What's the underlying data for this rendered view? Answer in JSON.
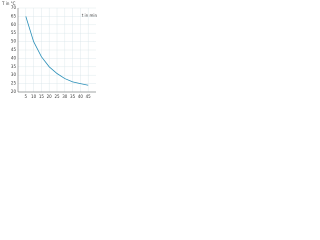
{
  "chart_data": {
    "type": "line",
    "y_label": "T in °C",
    "x_label": "t in min",
    "x": [
      5,
      10,
      15,
      20,
      25,
      30,
      35,
      40,
      45
    ],
    "series": [
      {
        "name": "T",
        "color": "#2a8fb8",
        "values": [
          65,
          50,
          41,
          35,
          31,
          28,
          26,
          25,
          24
        ]
      }
    ],
    "xlim": [
      0,
      50
    ],
    "xticks": [
      5,
      10,
      15,
      20,
      25,
      30,
      35,
      40,
      45
    ],
    "ylim": [
      20,
      70
    ],
    "yticks": [
      20,
      25,
      30,
      35,
      40,
      45,
      50,
      55,
      60,
      65,
      70
    ],
    "grid": true
  }
}
